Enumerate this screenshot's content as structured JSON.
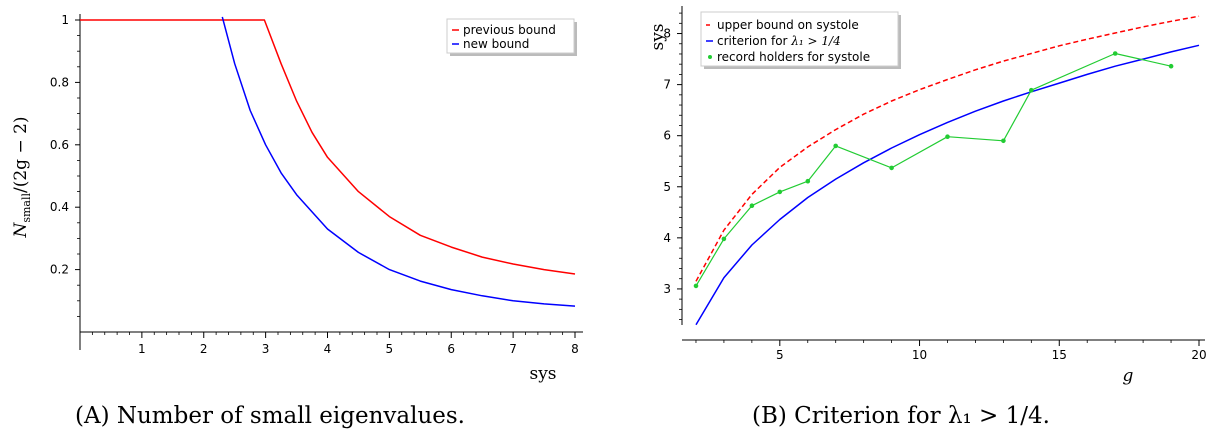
{
  "chart_data": [
    {
      "type": "line",
      "caption": "(A) Number of small eigenvalues.",
      "xlabel": "sys",
      "ylabel": "N_small/(2g − 2)",
      "ylabel_main": "N",
      "ylabel_sub": "small",
      "ylabel_rest": "/(2g − 2)",
      "xlim": [
        0,
        8
      ],
      "ylim": [
        0,
        1
      ],
      "xticks": [
        1,
        2,
        3,
        4,
        5,
        6,
        7,
        8
      ],
      "yticks": [
        0.2,
        0.4,
        0.6,
        0.8,
        1
      ],
      "ytick_labels": [
        "0.2",
        "0.4",
        "0.6",
        "0.8",
        "1"
      ],
      "legend_position": "top-right",
      "series": [
        {
          "name": "previous bound",
          "color": "#ff0000",
          "style": "solid",
          "x": [
            0,
            0.5,
            1,
            1.5,
            2,
            2.5,
            2.98,
            3.25,
            3.5,
            3.75,
            4,
            4.5,
            5,
            5.5,
            6,
            6.5,
            7,
            7.5,
            8
          ],
          "y": [
            1,
            1,
            1,
            1,
            1,
            1,
            1,
            0.86,
            0.74,
            0.64,
            0.56,
            0.45,
            0.37,
            0.31,
            0.272,
            0.24,
            0.218,
            0.2,
            0.186
          ]
        },
        {
          "name": "new bound",
          "color": "#0000ff",
          "style": "solid",
          "x": [
            2.3,
            2.5,
            2.75,
            3,
            3.25,
            3.5,
            4,
            4.5,
            5,
            5.5,
            6,
            6.5,
            7,
            7.5,
            8
          ],
          "y": [
            1.01,
            0.86,
            0.71,
            0.6,
            0.51,
            0.44,
            0.33,
            0.255,
            0.2,
            0.163,
            0.136,
            0.116,
            0.1,
            0.09,
            0.083
          ]
        }
      ]
    },
    {
      "type": "line",
      "caption": "(B) Criterion for λ₁ > 1/4.",
      "xlabel": "g",
      "ylabel": "sys",
      "xlim": [
        1.5,
        20
      ],
      "ylim": [
        2.0,
        8.5
      ],
      "xticks": [
        5,
        10,
        15,
        20
      ],
      "yticks": [
        3,
        4,
        5,
        6,
        7,
        8
      ],
      "legend_position": "top-left",
      "series": [
        {
          "name": "upper bound on systole",
          "color": "#ff0000",
          "style": "dashed",
          "x": [
            2,
            3,
            4,
            5,
            6,
            7,
            8,
            9,
            10,
            11,
            12,
            13,
            14,
            15,
            16,
            17,
            18,
            19,
            20
          ],
          "y": [
            3.15,
            4.15,
            4.85,
            5.38,
            5.78,
            6.12,
            6.42,
            6.68,
            6.9,
            7.1,
            7.29,
            7.46,
            7.61,
            7.76,
            7.89,
            8.01,
            8.13,
            8.24,
            8.34
          ]
        },
        {
          "name": "criterion for λ₁ > 1/4",
          "color": "#0000ff",
          "style": "solid",
          "x": [
            2,
            3,
            4,
            5,
            6,
            7,
            8,
            9,
            10,
            11,
            12,
            13,
            14,
            15,
            16,
            17,
            18,
            19,
            20
          ],
          "y": [
            2.3,
            3.22,
            3.86,
            4.36,
            4.79,
            5.15,
            5.47,
            5.76,
            6.02,
            6.26,
            6.48,
            6.68,
            6.86,
            7.03,
            7.2,
            7.36,
            7.5,
            7.64,
            7.77
          ]
        },
        {
          "name": "record holders for systole",
          "color": "#22cc33",
          "style": "solid-markers",
          "x": [
            2,
            3,
            4,
            5,
            6,
            7,
            9,
            11,
            13,
            14,
            17,
            19
          ],
          "y": [
            3.06,
            3.98,
            4.63,
            4.9,
            5.11,
            5.8,
            5.37,
            5.98,
            5.9,
            6.89,
            7.61,
            7.36
          ]
        }
      ]
    }
  ],
  "legend_b_label_prefix": "criterion for ",
  "legend_b_label_math": "λ₁ > 1/4"
}
